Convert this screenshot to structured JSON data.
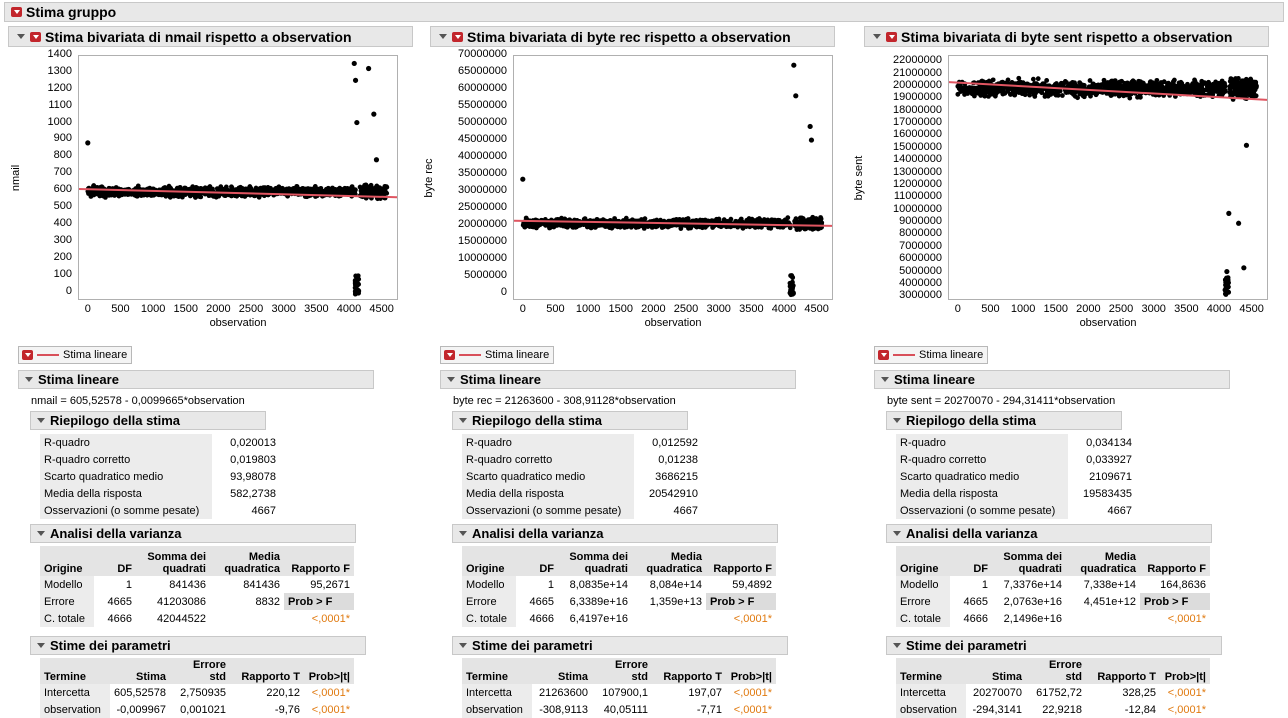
{
  "group_title": "Stima gruppo",
  "panels": [
    {
      "title": "Stima bivariata di nmail rispetto a observation",
      "ylabel": "nmail",
      "xlabel": "observation",
      "yticks": [
        "0",
        "100",
        "200",
        "300",
        "400",
        "500",
        "600",
        "700",
        "800",
        "900",
        "1000",
        "1100",
        "1200",
        "1300",
        "1400"
      ],
      "xticks": [
        "0",
        "500",
        "1000",
        "1500",
        "2000",
        "2500",
        "3000",
        "3500",
        "4000",
        "4500"
      ],
      "legend": "Stima lineare",
      "fit_title": "Stima lineare",
      "equation": "nmail = 605,52578 - 0,0099665*observation",
      "summary_title": "Riepilogo della stima",
      "summary": [
        {
          "k": "R-quadro",
          "v": "0,020013"
        },
        {
          "k": "R-quadro corretto",
          "v": "0,019803"
        },
        {
          "k": "Scarto quadratico medio",
          "v": "93,98078"
        },
        {
          "k": "Media della risposta",
          "v": "582,2738"
        },
        {
          "k": "Osservazioni (o somme pesate)",
          "v": "4667"
        }
      ],
      "anova_title": "Analisi della varianza",
      "anova_rows": [
        {
          "src": "Modello",
          "df": "1",
          "ss": "841436",
          "ms": "841436",
          "f": "95,2671"
        },
        {
          "src": "Errore",
          "df": "4665",
          "ss": "41203086",
          "ms": "8832",
          "f": "Prob > F"
        },
        {
          "src": "C. totale",
          "df": "4666",
          "ss": "42044522",
          "ms": "",
          "f": "<,0001*"
        }
      ],
      "params_title": "Stime dei parametri",
      "params_rows": [
        {
          "term": "Intercetta",
          "est": "605,52578",
          "se": "2,750935",
          "t": "220,12",
          "p": "<,0001*"
        },
        {
          "term": "observation",
          "est": "-0,009967",
          "se": "0,001021",
          "t": "-9,76",
          "p": "<,0001*"
        }
      ]
    },
    {
      "title": "Stima bivariata di byte rec rispetto a observation",
      "ylabel": "byte rec",
      "xlabel": "observation",
      "yticks": [
        "0",
        "5000000",
        "10000000",
        "15000000",
        "20000000",
        "25000000",
        "30000000",
        "35000000",
        "40000000",
        "45000000",
        "50000000",
        "55000000",
        "60000000",
        "65000000",
        "70000000"
      ],
      "xticks": [
        "0",
        "500",
        "1000",
        "1500",
        "2000",
        "2500",
        "3000",
        "3500",
        "4000",
        "4500"
      ],
      "legend": "Stima lineare",
      "fit_title": "Stima lineare",
      "equation": "byte rec = 21263600 - 308,91128*observation",
      "summary_title": "Riepilogo della stima",
      "summary": [
        {
          "k": "R-quadro",
          "v": "0,012592"
        },
        {
          "k": "R-quadro corretto",
          "v": "0,01238"
        },
        {
          "k": "Scarto quadratico medio",
          "v": "3686215"
        },
        {
          "k": "Media della risposta",
          "v": "20542910"
        },
        {
          "k": "Osservazioni (o somme pesate)",
          "v": "4667"
        }
      ],
      "anova_title": "Analisi della varianza",
      "anova_rows": [
        {
          "src": "Modello",
          "df": "1",
          "ss": "8,0835e+14",
          "ms": "8,084e+14",
          "f": "59,4892"
        },
        {
          "src": "Errore",
          "df": "4665",
          "ss": "6,3389e+16",
          "ms": "1,359e+13",
          "f": "Prob > F"
        },
        {
          "src": "C. totale",
          "df": "4666",
          "ss": "6,4197e+16",
          "ms": "",
          "f": "<,0001*"
        }
      ],
      "params_title": "Stime dei parametri",
      "params_rows": [
        {
          "term": "Intercetta",
          "est": "21263600",
          "se": "107900,1",
          "t": "197,07",
          "p": "<,0001*"
        },
        {
          "term": "observation",
          "est": "-308,9113",
          "se": "40,05111",
          "t": "-7,71",
          "p": "<,0001*"
        }
      ]
    },
    {
      "title": "Stima bivariata di byte sent rispetto a observation",
      "ylabel": "byte sent",
      "xlabel": "observation",
      "yticks": [
        "3000000",
        "4000000",
        "5000000",
        "6000000",
        "7000000",
        "8000000",
        "9000000",
        "10000000",
        "11000000",
        "12000000",
        "13000000",
        "14000000",
        "15000000",
        "16000000",
        "17000000",
        "18000000",
        "19000000",
        "20000000",
        "21000000",
        "22000000"
      ],
      "xticks": [
        "0",
        "500",
        "1000",
        "1500",
        "2000",
        "2500",
        "3000",
        "3500",
        "4000",
        "4500"
      ],
      "legend": "Stima lineare",
      "fit_title": "Stima lineare",
      "equation": "byte sent = 20270070 - 294,31411*observation",
      "summary_title": "Riepilogo della stima",
      "summary": [
        {
          "k": "R-quadro",
          "v": "0,034134"
        },
        {
          "k": "R-quadro corretto",
          "v": "0,033927"
        },
        {
          "k": "Scarto quadratico medio",
          "v": "2109671"
        },
        {
          "k": "Media della risposta",
          "v": "19583435"
        },
        {
          "k": "Osservazioni (o somme pesate)",
          "v": "4667"
        }
      ],
      "anova_title": "Analisi della varianza",
      "anova_rows": [
        {
          "src": "Modello",
          "df": "1",
          "ss": "7,3376e+14",
          "ms": "7,338e+14",
          "f": "164,8636"
        },
        {
          "src": "Errore",
          "df": "4665",
          "ss": "2,0763e+16",
          "ms": "4,451e+12",
          "f": "Prob > F"
        },
        {
          "src": "C. totale",
          "df": "4666",
          "ss": "2,1496e+16",
          "ms": "",
          "f": "<,0001*"
        }
      ],
      "params_title": "Stime dei parametri",
      "params_rows": [
        {
          "term": "Intercetta",
          "est": "20270070",
          "se": "61752,72",
          "t": "328,25",
          "p": "<,0001*"
        },
        {
          "term": "observation",
          "est": "-294,3141",
          "se": "22,9218",
          "t": "-12,84",
          "p": "<,0001*"
        }
      ]
    }
  ],
  "anova_headers": {
    "src": "Origine",
    "df": "DF",
    "ss": "Somma dei quadrati",
    "ms": "Media quadratica",
    "f": "Rapporto F"
  },
  "params_headers": {
    "term": "Termine",
    "est": "Stima",
    "se": "Errore std",
    "t": "Rapporto T",
    "p": "Prob>|t|"
  },
  "chart_data": [
    {
      "type": "scatter",
      "title": "Stima bivariata di nmail rispetto a observation",
      "xlabel": "observation",
      "ylabel": "nmail",
      "xlim": [
        -150,
        4750
      ],
      "ylim": [
        -50,
        1400
      ],
      "fit": {
        "intercept": 605.52578,
        "slope": -0.0099665
      },
      "bulk": {
        "x": [
          0,
          4100
        ],
        "y_center": 590,
        "y_spread": 40
      },
      "outliers_x": [
        0,
        4080,
        4100,
        4120,
        4300,
        4380,
        4420
      ],
      "outliers_y": [
        880,
        1350,
        1250,
        1000,
        1320,
        1050,
        780
      ]
    },
    {
      "type": "scatter",
      "title": "Stima bivariata di byte rec rispetto a observation",
      "xlabel": "observation",
      "ylabel": "byte rec",
      "xlim": [
        -150,
        4750
      ],
      "ylim": [
        -2000000,
        70000000
      ],
      "fit": {
        "intercept": 21263600,
        "slope": -308.91128
      },
      "bulk": {
        "x": [
          0,
          4100
        ],
        "y_center": 20500000,
        "y_spread": 1800000
      },
      "outliers_x": [
        0,
        4150,
        4180,
        4400,
        4420
      ],
      "outliers_y": [
        33500000,
        67000000,
        58000000,
        49000000,
        45000000
      ]
    },
    {
      "type": "scatter",
      "title": "Stima bivariata di byte sent rispetto a observation",
      "xlabel": "observation",
      "ylabel": "byte sent",
      "xlim": [
        -150,
        4750
      ],
      "ylim": [
        2700000,
        22500000
      ],
      "fit": {
        "intercept": 20270070,
        "slope": -294.31411
      },
      "bulk": {
        "x": [
          0,
          4100
        ],
        "y_center": 19800000,
        "y_spread": 900000
      },
      "outliers_x": [
        4100,
        4120,
        4150,
        4300,
        4380,
        4420
      ],
      "outliers_y": [
        3200000,
        5000000,
        9700000,
        8900000,
        5300000,
        15200000
      ]
    }
  ]
}
